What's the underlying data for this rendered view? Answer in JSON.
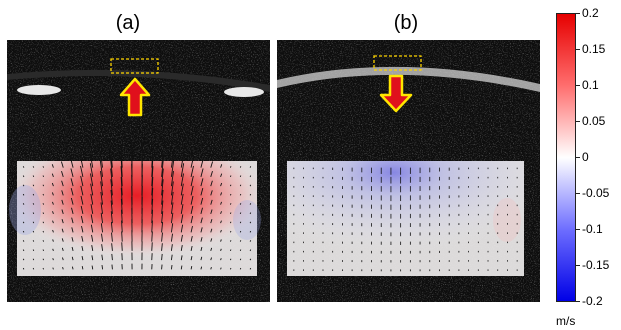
{
  "panels": [
    {
      "label": "(a)",
      "arrow_direction": "up"
    },
    {
      "label": "(b)",
      "arrow_direction": "down"
    }
  ],
  "colorbar": {
    "ticks": [
      "0.2",
      "0.15",
      "0.1",
      "0.05",
      "0",
      "-0.05",
      "-0.1",
      "-0.15",
      "-0.2"
    ],
    "unit": "m/s",
    "max_color": "#e60000",
    "mid_color": "#ffffff",
    "min_color": "#0000e6"
  },
  "colors": {
    "arrow_fill": "#e0101c",
    "arrow_outline": "#ffe600",
    "roi_box": "#ffd500"
  }
}
